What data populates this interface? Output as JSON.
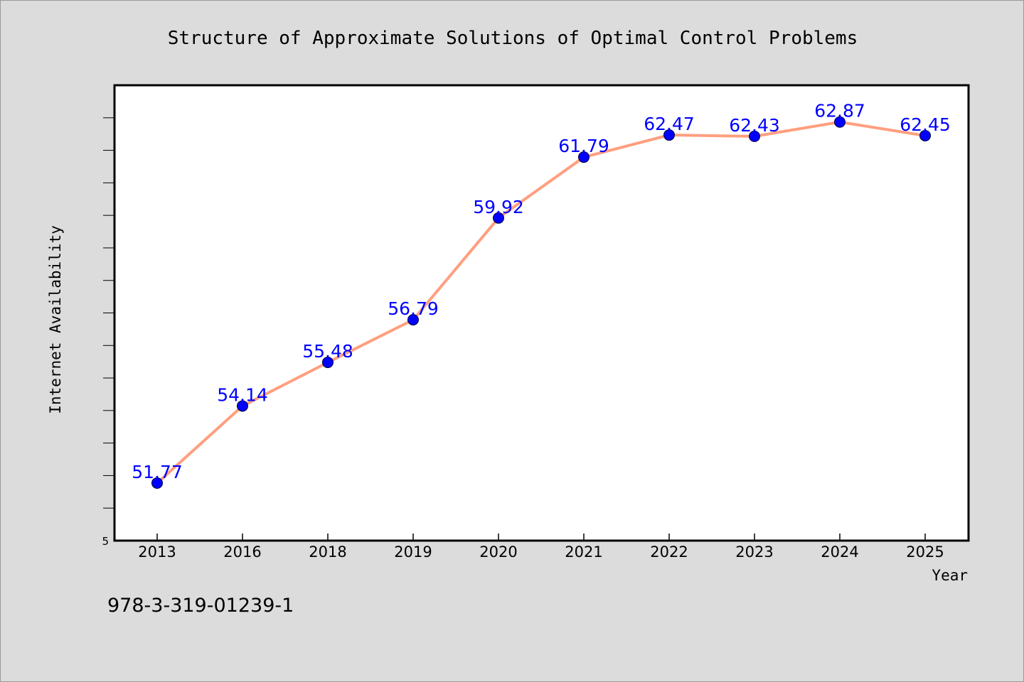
{
  "footnote": "978-3-319-01239-1",
  "colors": {
    "page_background": "#dcdcdc",
    "plot_background": "#ffffff",
    "line": "#ff9f7f",
    "marker": "#0000ff",
    "data_label": "#0000ff"
  },
  "chart_data": {
    "type": "line",
    "title": "Structure of Approximate Solutions of Optimal Control Problems",
    "xlabel": "Year",
    "ylabel": "Internet Availability",
    "categories": [
      "2013",
      "2016",
      "2018",
      "2019",
      "2020",
      "2021",
      "2022",
      "2023",
      "2024",
      "2025"
    ],
    "series": [
      {
        "values": [
          51.77,
          54.14,
          55.48,
          56.79,
          59.92,
          61.79,
          62.47,
          62.43,
          62.87,
          62.45
        ],
        "labels": [
          "51.77",
          "54.14",
          "55.48",
          "56.79",
          "59.92",
          "61.79",
          "62.47",
          "62.43",
          "62.87",
          "62.45"
        ]
      }
    ],
    "ylim": [
      50,
      64
    ],
    "y_tick_label": "5",
    "grid": false,
    "legend": "none"
  }
}
